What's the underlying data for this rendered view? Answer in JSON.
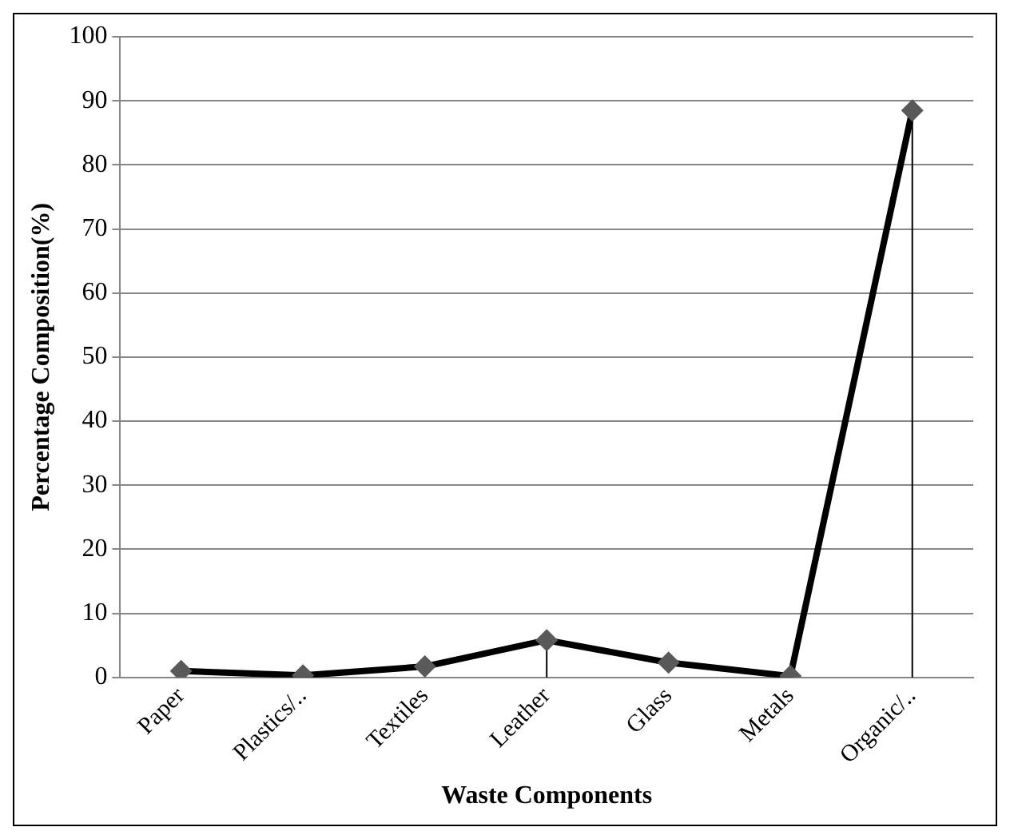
{
  "chart_data": {
    "type": "line",
    "xlabel": "Waste Components",
    "ylabel": "Percentage Composition(%)",
    "categories": [
      "Paper",
      "Plastics/..",
      "Textiles",
      "Leather",
      "Glass",
      "Metals",
      "Organic/.."
    ],
    "series": [
      {
        "color": "#000000",
        "values": [
          1,
          0.3,
          1.7,
          5.8,
          2.3,
          0.2,
          88.5
        ],
        "errors": [
          null,
          null,
          null,
          [
            5.8,
            0
          ],
          null,
          null,
          [
            88.5,
            0
          ]
        ]
      }
    ],
    "ylim": [
      0,
      100
    ],
    "yticks": [
      0,
      10,
      20,
      30,
      40,
      50,
      60,
      70,
      80,
      90,
      100
    ],
    "grid": "y",
    "legend": false,
    "marker": "diamond",
    "line_style": "solid"
  }
}
